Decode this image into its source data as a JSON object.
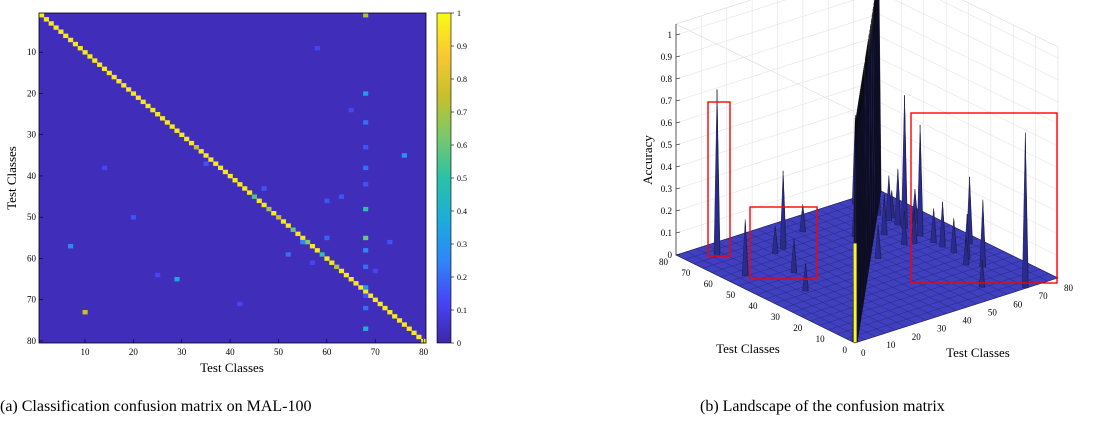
{
  "captions": {
    "a": "(a) Classification confusion matrix on MAL-100",
    "b": "(b) Landscape of the confusion matrix"
  },
  "chart_data": [
    {
      "type": "heatmap",
      "title": "",
      "xlabel": "Test Classes",
      "ylabel": "Test Classes",
      "n_classes": 80,
      "xlim": [
        1,
        80
      ],
      "ylim": [
        1,
        80
      ],
      "x_ticks": [
        10,
        20,
        30,
        40,
        50,
        60,
        70,
        80
      ],
      "y_ticks": [
        10,
        20,
        30,
        40,
        50,
        60,
        70,
        80
      ],
      "colorbar": {
        "min": 0,
        "max": 1,
        "ticks": [
          0,
          0.1,
          0.2,
          0.3,
          0.4,
          0.5,
          0.6,
          0.7,
          0.8,
          0.9,
          1
        ],
        "colors": [
          "#3e26a8",
          "#4745f4",
          "#2e87f7",
          "#1cadda",
          "#29c2a8",
          "#7ac86a",
          "#c8c02a",
          "#f9c932",
          "#f9fb15"
        ]
      },
      "background_value": 0.03,
      "diagonal_value": 0.95,
      "diagonal_exceptions": [
        [
          33,
          0.75
        ],
        [
          45,
          0.55
        ],
        [
          48,
          0.7
        ],
        [
          50,
          0.75
        ],
        [
          53,
          0.6
        ],
        [
          56,
          0.65
        ],
        [
          59,
          0.5
        ],
        [
          62,
          0.7
        ]
      ],
      "off_diagonal": [
        [
          68,
          1,
          0.7
        ],
        [
          68,
          20,
          0.3
        ],
        [
          68,
          27,
          0.2
        ],
        [
          68,
          33,
          0.15
        ],
        [
          68,
          38,
          0.2
        ],
        [
          68,
          42,
          0.15
        ],
        [
          68,
          48,
          0.5
        ],
        [
          68,
          55,
          0.6
        ],
        [
          68,
          58,
          0.25
        ],
        [
          68,
          62,
          0.2
        ],
        [
          68,
          67,
          0.3
        ],
        [
          68,
          69,
          0.15
        ],
        [
          68,
          72,
          0.2
        ],
        [
          68,
          77,
          0.4
        ],
        [
          10,
          73,
          0.75
        ],
        [
          29,
          65,
          0.35
        ],
        [
          76,
          35,
          0.3
        ],
        [
          55,
          56,
          0.25
        ],
        [
          20,
          50,
          0.15
        ],
        [
          35,
          37,
          0.15
        ],
        [
          47,
          43,
          0.15
        ],
        [
          65,
          24,
          0.12
        ],
        [
          52,
          59,
          0.2
        ],
        [
          60,
          46,
          0.15
        ],
        [
          7,
          57,
          0.25
        ],
        [
          14,
          38,
          0.12
        ],
        [
          42,
          71,
          0.12
        ],
        [
          58,
          9,
          0.12
        ],
        [
          73,
          56,
          0.15
        ],
        [
          63,
          45,
          0.15
        ],
        [
          25,
          64,
          0.12
        ],
        [
          60,
          55,
          0.18
        ],
        [
          57,
          61,
          0.12
        ],
        [
          70,
          63,
          0.12
        ]
      ]
    },
    {
      "type": "surface",
      "title": "",
      "xlabel": "Test Classes",
      "ylabel": "Test Classes",
      "zlabel": "Accuracy",
      "xlim": [
        0,
        80
      ],
      "ylim": [
        0,
        80
      ],
      "zlim": [
        0,
        1
      ],
      "x_ticks": [
        0,
        10,
        20,
        30,
        40,
        50,
        60,
        70,
        80
      ],
      "y_ticks": [
        0,
        10,
        20,
        30,
        40,
        50,
        60,
        70,
        80
      ],
      "z_ticks": [
        0,
        0.1,
        0.2,
        0.3,
        0.4,
        0.5,
        0.6,
        0.7,
        0.8,
        0.9,
        1
      ],
      "surface_color": "#3f3fbf",
      "highlight_color": "#ff0000",
      "grid": true
    }
  ]
}
